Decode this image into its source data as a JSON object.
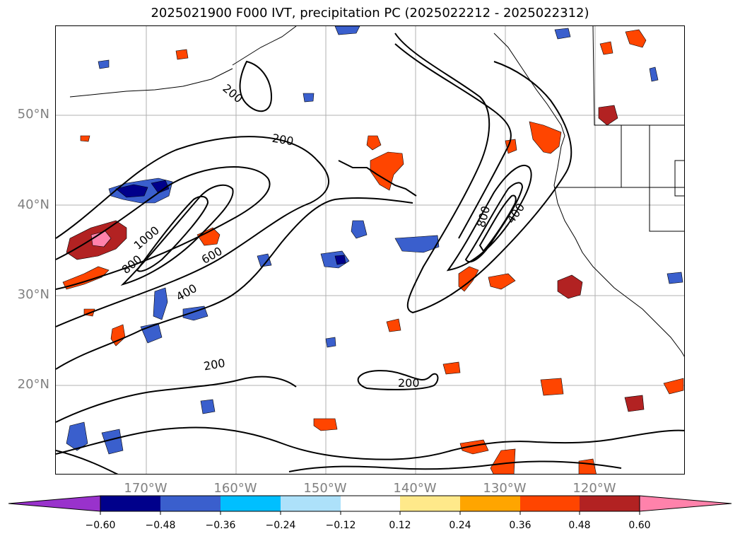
{
  "title": "2025021900 F000 IVT, precipitation PC (2025022212 - 2025022312)",
  "lat_labels": [
    "50°N",
    "40°N",
    "30°N",
    "20°N"
  ],
  "lon_labels": [
    "170°W",
    "160°W",
    "150°W",
    "140°W",
    "130°W",
    "120°W"
  ],
  "contour_labels": [
    "200",
    "200",
    "200",
    "200",
    "400",
    "400",
    "600",
    "800",
    "800",
    "1000"
  ],
  "colorbar": {
    "ticks": [
      "−0.60",
      "−0.48",
      "−0.36",
      "−0.24",
      "−0.12",
      "0.12",
      "0.24",
      "0.36",
      "0.48",
      "0.60"
    ],
    "colors": [
      "#9932CC",
      "#00008B",
      "#3A5FCD",
      "#00BFFF",
      "#ADE1FA",
      "#FFFFFF",
      "#FFE98A",
      "#FFA500",
      "#FF4500",
      "#B22222",
      "#FF82AB"
    ]
  }
}
